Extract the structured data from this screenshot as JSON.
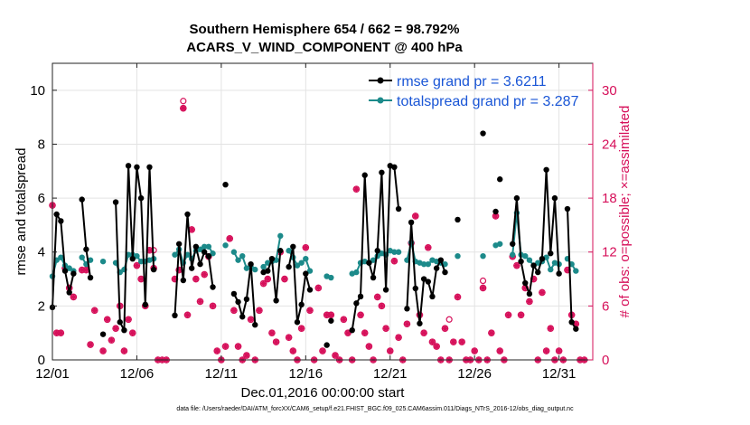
{
  "chart_data": {
    "type": "line",
    "title": "Southern Hemisphere 654 / 662 = 98.792%",
    "subtitle": "ACARS_V_WIND_COMPONENT @ 400 hPa",
    "xlabel": "Dec.01,2016 00:00:00 start",
    "ylabel": "rmse and totalspread",
    "y2label": "# of obs: o=possible; ×=assimilated",
    "footer": "data file: /Users/raeder/DAI/ATM_forcXX/CAM6_setup/f.e21.FHIST_BGC.f09_025.CAM6assim.011/Diags_NTrS_2016-12/obs_diag_output.nc",
    "xlim": [
      0,
      32
    ],
    "ylim": [
      0,
      11
    ],
    "y2lim": [
      0,
      33
    ],
    "xticks": [
      0,
      5,
      10,
      15,
      20,
      25,
      30
    ],
    "xticklabels": [
      "12/01",
      "12/06",
      "12/11",
      "12/16",
      "12/21",
      "12/26",
      "12/31"
    ],
    "yticks": [
      0,
      2,
      4,
      6,
      8,
      10
    ],
    "y2ticks": [
      0,
      6,
      12,
      18,
      24,
      30
    ],
    "grid": true,
    "legend_position": "top-right",
    "series": [
      {
        "name": "rmse grand pr = 3.6211",
        "color": "#000000",
        "segments": [
          {
            "x": [
              0.0,
              0.25,
              0.5,
              0.75,
              1.0,
              1.25
            ],
            "y": [
              1.95,
              5.4,
              5.15,
              3.3,
              2.5,
              3.2
            ]
          },
          {
            "x": [
              1.75,
              2.0,
              2.25
            ],
            "y": [
              5.95,
              4.1,
              3.05
            ]
          },
          {
            "x": [
              3.0
            ],
            "y": [
              0.95
            ]
          },
          {
            "x": [
              3.75,
              4.0,
              4.25,
              4.5,
              4.75,
              5.0,
              5.25,
              5.5,
              5.75,
              6.0
            ],
            "y": [
              5.85,
              1.4,
              1.1,
              7.2,
              3.75,
              7.15,
              6.0,
              2.05,
              7.15,
              3.35
            ]
          },
          {
            "x": [
              7.25,
              7.5,
              7.75,
              8.0,
              8.25,
              8.5,
              8.75,
              9.0,
              9.25,
              9.5
            ],
            "y": [
              1.65,
              4.3,
              2.95,
              5.4,
              3.4,
              4.2,
              3.55,
              4.0,
              3.85,
              2.7
            ]
          },
          {
            "x": [
              10.25
            ],
            "y": [
              6.5
            ]
          },
          {
            "x": [
              10.75,
              11.0,
              11.25,
              11.5,
              11.75,
              12.0
            ],
            "y": [
              2.45,
              2.15,
              1.6,
              2.25,
              3.55,
              1.3
            ]
          },
          {
            "x": [
              12.5,
              12.75,
              13.0,
              13.25,
              13.5
            ],
            "y": [
              3.25,
              3.3,
              3.75,
              2.2,
              4.05
            ]
          },
          {
            "x": [
              14.0,
              14.25,
              14.5,
              14.75,
              15.0,
              15.25
            ],
            "y": [
              3.45,
              4.2,
              1.4,
              2.05,
              3.2,
              2.6
            ]
          },
          {
            "x": [
              16.25
            ],
            "y": [
              0.55
            ]
          },
          {
            "x": [
              16.5
            ],
            "y": [
              1.45
            ]
          },
          {
            "x": [
              17.75,
              18.0,
              18.25,
              18.5,
              18.75,
              19.0,
              19.25,
              19.5,
              19.75,
              20.0,
              20.25,
              20.5
            ],
            "y": [
              1.1,
              2.1,
              2.35,
              6.85,
              3.6,
              3.05,
              4.05,
              6.95,
              2.6,
              7.2,
              7.15,
              5.6
            ]
          },
          {
            "x": [
              21.0,
              21.25,
              21.5,
              21.75,
              22.0,
              22.25,
              22.5,
              22.75,
              23.0,
              23.25
            ],
            "y": [
              1.9,
              5.1,
              2.65,
              1.35,
              3.0,
              2.9,
              2.35,
              3.4,
              3.7,
              3.25
            ]
          },
          {
            "x": [
              24.0
            ],
            "y": [
              5.2
            ]
          },
          {
            "x": [
              25.5
            ],
            "y": [
              8.4
            ]
          },
          {
            "x": [
              26.25
            ],
            "y": [
              5.5
            ]
          },
          {
            "x": [
              26.5
            ],
            "y": [
              6.7
            ]
          },
          {
            "x": [
              27.25,
              27.5,
              27.75,
              28.0,
              28.25,
              28.5,
              28.75,
              29.0,
              29.25,
              29.5,
              29.75,
              30.0
            ],
            "y": [
              4.3,
              6.0,
              3.65,
              2.85,
              2.45,
              3.5,
              3.25,
              3.75,
              7.05,
              3.95,
              6.0,
              3.2
            ]
          },
          {
            "x": [
              30.5,
              30.75,
              31.0
            ],
            "y": [
              5.6,
              1.4,
              1.15
            ]
          }
        ]
      },
      {
        "name": "totalspread grand pr = 3.287",
        "color": "#1c8a8a",
        "segments": [
          {
            "x": [
              0.0,
              0.25,
              0.5,
              0.75,
              1.0,
              1.25
            ],
            "y": [
              3.1,
              3.7,
              3.8,
              3.5,
              3.4,
              3.3
            ]
          },
          {
            "x": [
              1.75,
              2.0,
              2.25
            ],
            "y": [
              3.8,
              3.55,
              3.7
            ]
          },
          {
            "x": [
              3.0
            ],
            "y": [
              3.65
            ]
          },
          {
            "x": [
              3.75,
              4.0,
              4.25,
              4.5,
              4.75,
              5.0,
              5.25,
              5.5,
              5.75,
              6.0
            ],
            "y": [
              3.6,
              3.25,
              3.35,
              3.9,
              3.9,
              3.85,
              3.65,
              3.65,
              3.7,
              3.75
            ]
          },
          {
            "x": [
              7.25,
              7.5,
              7.75,
              8.0,
              8.25,
              8.5,
              8.75,
              9.0,
              9.25,
              9.5
            ],
            "y": [
              3.9,
              4.1,
              3.6,
              3.9,
              3.75,
              4.05,
              4.1,
              4.2,
              4.2,
              3.95
            ]
          },
          {
            "x": [
              10.25
            ],
            "y": [
              4.25
            ]
          },
          {
            "x": [
              10.75,
              11.0,
              11.25,
              11.5,
              11.75,
              12.0
            ],
            "y": [
              4.0,
              3.7,
              3.85,
              3.4,
              3.45,
              3.35
            ]
          },
          {
            "x": [
              12.5,
              12.75,
              13.0,
              13.25,
              13.5
            ],
            "y": [
              3.45,
              3.6,
              3.65,
              3.7,
              4.6
            ]
          },
          {
            "x": [
              14.0,
              14.25,
              14.5,
              14.75,
              15.0,
              15.25
            ],
            "y": [
              4.05,
              3.8,
              3.5,
              3.6,
              3.75,
              3.3
            ]
          },
          {
            "x": [
              16.25
            ],
            "y": [
              3.1
            ]
          },
          {
            "x": [
              16.5
            ],
            "y": [
              3.05
            ]
          },
          {
            "x": [
              17.75,
              18.0,
              18.25,
              18.5,
              18.75,
              19.0,
              19.25,
              19.5,
              19.75,
              20.0,
              20.25,
              20.5
            ],
            "y": [
              3.2,
              3.25,
              3.6,
              3.65,
              3.6,
              3.7,
              3.85,
              3.95,
              3.9,
              4.05,
              4.0,
              4.0
            ]
          },
          {
            "x": [
              21.0,
              21.25,
              21.5,
              21.75,
              22.0,
              22.25,
              22.5,
              22.75,
              23.0,
              23.25
            ],
            "y": [
              3.7,
              4.35,
              3.65,
              3.6,
              3.55,
              3.55,
              3.7,
              3.65,
              3.6,
              3.55
            ]
          },
          {
            "x": [
              24.0
            ],
            "y": [
              3.85
            ]
          },
          {
            "x": [
              25.5
            ],
            "y": [
              3.85
            ]
          },
          {
            "x": [
              26.25
            ],
            "y": [
              4.25
            ]
          },
          {
            "x": [
              26.5
            ],
            "y": [
              4.3
            ]
          },
          {
            "x": [
              27.25,
              27.5,
              27.75,
              28.0,
              28.25,
              28.5,
              28.75,
              29.0,
              29.25,
              29.5,
              29.75,
              30.0
            ],
            "y": [
              3.9,
              5.45,
              3.9,
              3.85,
              3.7,
              3.5,
              3.6,
              3.65,
              3.8,
              3.35,
              3.6,
              3.55
            ]
          },
          {
            "x": [
              30.5,
              30.75,
              31.0
            ],
            "y": [
              3.75,
              3.55,
              3.3
            ]
          }
        ]
      }
    ],
    "obs_possible": {
      "color": "#d6105a",
      "marker": "o",
      "axis": "right",
      "points": [
        [
          0.0,
          17.2
        ],
        [
          0.25,
          3.0
        ],
        [
          0.5,
          3.0
        ],
        [
          0.75,
          10.2
        ],
        [
          1.0,
          8.0
        ],
        [
          1.25,
          7.0
        ],
        [
          1.75,
          10.0
        ],
        [
          2.0,
          10.0
        ],
        [
          2.25,
          1.7
        ],
        [
          2.5,
          5.5
        ],
        [
          3.0,
          1.0
        ],
        [
          3.25,
          4.5
        ],
        [
          3.5,
          2.2
        ],
        [
          3.75,
          3.5
        ],
        [
          4.0,
          6.0
        ],
        [
          4.25,
          1.0
        ],
        [
          4.5,
          4.5
        ],
        [
          4.75,
          3.0
        ],
        [
          5.0,
          10.5
        ],
        [
          5.25,
          9.0
        ],
        [
          5.5,
          6.0
        ],
        [
          5.75,
          12.2
        ],
        [
          6.0,
          10.2
        ],
        [
          6.25,
          0.0
        ],
        [
          6.5,
          0.0
        ],
        [
          6.75,
          0.0
        ],
        [
          7.25,
          9.0
        ],
        [
          7.5,
          10.0
        ],
        [
          7.75,
          28.0
        ],
        [
          8.0,
          5.0
        ],
        [
          8.25,
          14.5
        ],
        [
          8.5,
          9.0
        ],
        [
          8.75,
          6.5
        ],
        [
          9.0,
          9.5
        ],
        [
          9.25,
          11.5
        ],
        [
          9.5,
          6.0
        ],
        [
          9.75,
          1.0
        ],
        [
          10.0,
          0.0
        ],
        [
          10.25,
          1.5
        ],
        [
          10.5,
          13.5
        ],
        [
          10.75,
          5.5
        ],
        [
          11.0,
          1.5
        ],
        [
          11.25,
          0.0
        ],
        [
          11.5,
          0.5
        ],
        [
          11.75,
          4.5
        ],
        [
          12.0,
          0.0
        ],
        [
          12.25,
          5.5
        ],
        [
          12.5,
          8.5
        ],
        [
          12.75,
          9.0
        ],
        [
          13.0,
          3.0
        ],
        [
          13.25,
          2.0
        ],
        [
          13.5,
          12.0
        ],
        [
          13.75,
          9.0
        ],
        [
          14.0,
          2.5
        ],
        [
          14.25,
          1.0
        ],
        [
          14.5,
          0.0
        ],
        [
          14.75,
          3.5
        ],
        [
          15.0,
          12.5
        ],
        [
          15.25,
          5.5
        ],
        [
          15.5,
          0.0
        ],
        [
          15.75,
          8.0
        ],
        [
          16.0,
          1.0
        ],
        [
          16.25,
          5.0
        ],
        [
          16.5,
          5.0
        ],
        [
          16.75,
          0.5
        ],
        [
          17.0,
          0.0
        ],
        [
          17.25,
          4.5
        ],
        [
          17.5,
          3.0
        ],
        [
          17.75,
          0.0
        ],
        [
          18.0,
          19.0
        ],
        [
          18.25,
          5.0
        ],
        [
          18.5,
          3.0
        ],
        [
          18.75,
          1.5
        ],
        [
          19.0,
          0.0
        ],
        [
          19.25,
          7.0
        ],
        [
          19.5,
          6.0
        ],
        [
          19.75,
          3.5
        ],
        [
          20.0,
          1.0
        ],
        [
          20.25,
          11.0
        ],
        [
          20.5,
          2.5
        ],
        [
          20.75,
          0.0
        ],
        [
          21.0,
          4.0
        ],
        [
          21.25,
          13.0
        ],
        [
          21.5,
          16.0
        ],
        [
          21.75,
          5.0
        ],
        [
          22.0,
          3.0
        ],
        [
          22.25,
          12.5
        ],
        [
          22.5,
          2.0
        ],
        [
          22.75,
          1.5
        ],
        [
          23.0,
          0.0
        ],
        [
          23.25,
          3.5
        ],
        [
          23.5,
          0.0
        ],
        [
          23.75,
          2.0
        ],
        [
          24.0,
          7.0
        ],
        [
          24.25,
          2.0
        ],
        [
          24.5,
          0.0
        ],
        [
          24.75,
          0.0
        ],
        [
          25.0,
          1.0
        ],
        [
          25.25,
          0.0
        ],
        [
          25.5,
          8.0
        ],
        [
          25.75,
          0.0
        ],
        [
          26.0,
          3.0
        ],
        [
          26.25,
          16.0
        ],
        [
          26.5,
          1.0
        ],
        [
          26.75,
          0.0
        ],
        [
          27.0,
          5.0
        ],
        [
          27.25,
          11.5
        ],
        [
          27.5,
          10.5
        ],
        [
          27.75,
          5.0
        ],
        [
          28.0,
          8.0
        ],
        [
          28.25,
          6.5
        ],
        [
          28.5,
          9.0
        ],
        [
          28.75,
          0.0
        ],
        [
          29.0,
          7.5
        ],
        [
          29.25,
          1.0
        ],
        [
          29.5,
          3.5
        ],
        [
          29.75,
          0.0
        ],
        [
          30.0,
          1.0
        ],
        [
          30.25,
          0.0
        ],
        [
          30.5,
          10.0
        ],
        [
          30.75,
          5.0
        ],
        [
          31.0,
          4.0
        ],
        [
          31.25,
          0.0
        ],
        [
          31.5,
          0.0
        ]
      ]
    },
    "obs_possible_circle_only": {
      "color": "#d6105a",
      "marker": "o",
      "axis": "right",
      "points": [
        [
          7.75,
          28.8
        ],
        [
          6.0,
          12.2
        ],
        [
          16.5,
          5.0
        ],
        [
          23.5,
          4.5
        ],
        [
          25.5,
          8.8
        ]
      ]
    }
  }
}
